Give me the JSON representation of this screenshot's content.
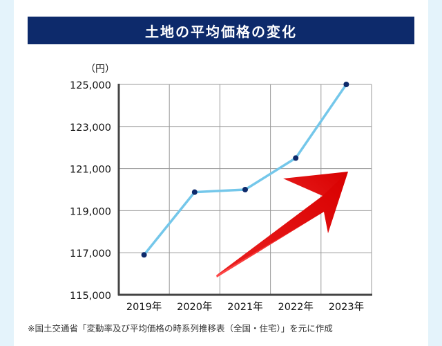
{
  "colors": {
    "page_background": "#e4f3fb",
    "card_background": "#ffffff",
    "title_background": "#0d2a6b",
    "title_text": "#ffffff",
    "line": "#74c7ea",
    "point": "#0d2a6b",
    "grid": "#999999",
    "axis": "#444444",
    "arrow_dark": "#d80000",
    "arrow_light": "#ff4a4a"
  },
  "header": {
    "title": "土地の平均価格の変化"
  },
  "footer": {
    "source": "※国土交通省「変動率及び平均価格の時系列推移表（全国・住宅）」を元に作成"
  },
  "decorations": {
    "trend_arrow": "up-right-arrow-icon"
  },
  "chart_data": {
    "type": "line",
    "title": "土地の平均価格の変化",
    "ylabel": "（円）",
    "xlabel": "",
    "categories": [
      "2019年",
      "2020年",
      "2021年",
      "2022年",
      "2023年"
    ],
    "y_tick_labels": [
      "125,000",
      "123,000",
      "121,000",
      "119,000",
      "117,000",
      "115,000"
    ],
    "y_ticks": [
      125000,
      123000,
      121000,
      119000,
      117000,
      115000
    ],
    "ylim": [
      115000,
      125000
    ],
    "grid": true,
    "series": [
      {
        "values": [
          116900,
          119880,
          120000,
          121500,
          125000
        ]
      }
    ]
  }
}
